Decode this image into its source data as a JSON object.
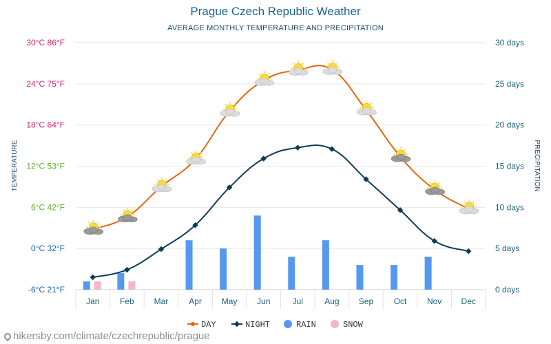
{
  "watermark": "hikersby.com/climate/czechrepublic/prague",
  "colors": {
    "title": "#1a6496",
    "day": "#e8650c",
    "night": "#0d3b55",
    "rain": "#5599ee",
    "snow": "#f7b6c8",
    "temp_label_hot": "#d6246e",
    "temp_label_warm": "#62b42a",
    "temp_label_cold": "#1a5fb4",
    "grid": "#e6e6e6",
    "precip_label": "#1a5f7a"
  },
  "chart_data": {
    "type": "line",
    "title": "Prague Czech Republic Weather",
    "subtitle": "AVERAGE MONTHLY TEMPERATURE AND PRECIPITATION",
    "categories": [
      "Jan",
      "Feb",
      "Mar",
      "Apr",
      "May",
      "Jun",
      "Jul",
      "Aug",
      "Sep",
      "Oct",
      "Nov",
      "Dec"
    ],
    "y_left": {
      "label": "TEMPERATURE",
      "range": [
        -6,
        30
      ],
      "ticks": [
        {
          "value": 30,
          "label": "30°C 86°F",
          "band": "hot"
        },
        {
          "value": 24,
          "label": "24°C 75°F",
          "band": "hot"
        },
        {
          "value": 18,
          "label": "18°C 64°F",
          "band": "hot"
        },
        {
          "value": 12,
          "label": "12°C 53°F",
          "band": "warm"
        },
        {
          "value": 6,
          "label": "6°C 42°F",
          "band": "warm"
        },
        {
          "value": 0,
          "label": "0°C 32°F",
          "band": "cold"
        },
        {
          "value": -6,
          "label": "-6°C 21°F",
          "band": "cold"
        }
      ]
    },
    "y_right": {
      "label": "PRECIPITATION",
      "range": [
        0,
        30
      ],
      "ticks": [
        {
          "value": 30,
          "label": "30 days"
        },
        {
          "value": 25,
          "label": "25 days"
        },
        {
          "value": 20,
          "label": "20 days"
        },
        {
          "value": 15,
          "label": "15 days"
        },
        {
          "value": 10,
          "label": "10 days"
        },
        {
          "value": 5,
          "label": "5 days"
        },
        {
          "value": 0,
          "label": "0 days"
        }
      ]
    },
    "series": [
      {
        "name": "DAY",
        "kind": "line",
        "axis": "left",
        "values": [
          2.8,
          4.6,
          9,
          13,
          20,
          24.5,
          26,
          26.1,
          20.2,
          13.4,
          8.6,
          5.8
        ]
      },
      {
        "name": "NIGHT",
        "kind": "line",
        "axis": "left",
        "values": [
          -4.2,
          -3.1,
          -0.1,
          3.4,
          8.9,
          13.1,
          14.7,
          14.5,
          10.1,
          5.6,
          1.1,
          -0.4
        ]
      },
      {
        "name": "RAIN",
        "kind": "bar",
        "axis": "right",
        "values": [
          1,
          2,
          0,
          6,
          5,
          9,
          4,
          6,
          3,
          3,
          4,
          0
        ]
      },
      {
        "name": "SNOW",
        "kind": "bar",
        "axis": "right",
        "values": [
          1,
          1,
          0,
          0,
          0,
          0,
          0,
          0,
          0,
          0,
          0,
          0
        ]
      }
    ],
    "legend": [
      {
        "name": "DAY",
        "symbol": "line-dot"
      },
      {
        "name": "NIGHT",
        "symbol": "line-diamond"
      },
      {
        "name": "RAIN",
        "symbol": "circle"
      },
      {
        "name": "SNOW",
        "symbol": "circle"
      }
    ],
    "legend_position": "bottom-center",
    "grid": true
  }
}
